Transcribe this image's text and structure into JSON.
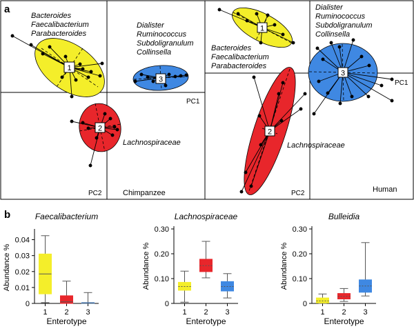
{
  "panel_a": {
    "label": "a",
    "chimp": {
      "taxa_1": [
        "Bacteroides",
        "Faecalibacterium",
        "Parabacteroides"
      ],
      "taxa_3": [
        "Dialister",
        "Ruminococcus",
        "Subdoligranulum",
        "Collinsella"
      ],
      "taxa_2": "Lachnospiraceae",
      "pc1": "PC1",
      "pc2": "PC2",
      "name": "Chimpanzee",
      "marker_1": "1",
      "marker_2": "2",
      "marker_3": "3"
    },
    "human": {
      "taxa_3": [
        "Dialister",
        "Ruminococcus",
        "Subdoligranulum",
        "Collinsella"
      ],
      "taxa_1": [
        "Bacteroides",
        "Faecalibacterium",
        "Parabacteroides"
      ],
      "taxa_2": "Lachnospiraceae",
      "pc1": "PC1",
      "pc2": "PC2",
      "name": "Human",
      "marker_1": "1",
      "marker_2": "2",
      "marker_3": "3"
    }
  },
  "panel_b": {
    "label": "b"
  },
  "colors": {
    "enterotype_1": "#f4ee2a",
    "enterotype_2": "#e8262b",
    "enterotype_3": "#3f88e2",
    "outline": "#000000"
  },
  "chart_data": [
    {
      "type": "box",
      "title": "Faecalibacterium",
      "xlabel": "Enterotype",
      "ylabel": "Abundance %",
      "categories": [
        "1",
        "2",
        "3"
      ],
      "ylim": [
        0,
        0.045
      ],
      "yticks": [
        "0",
        "0.01",
        "0.02",
        "0.03",
        "0.04"
      ],
      "ytick_values": [
        0,
        0.01,
        0.02,
        0.03,
        0.04
      ],
      "boxes": [
        {
          "min": 0.0005,
          "q1": 0.006,
          "median": 0.0185,
          "q3": 0.031,
          "max": 0.0425
        },
        {
          "min": 0.0,
          "q1": 0.0,
          "median": 0.001,
          "q3": 0.0048,
          "max": 0.014
        },
        {
          "min": 0.0,
          "q1": 0.0,
          "median": 0.0002,
          "q3": 0.0005,
          "max": 0.0068
        }
      ]
    },
    {
      "type": "box",
      "title": "Lachnospiraceae",
      "xlabel": "Enterotype",
      "ylabel": "Abundance %",
      "categories": [
        "1",
        "2",
        "3"
      ],
      "ylim": [
        0,
        0.3
      ],
      "yticks": [
        "0",
        "0.10",
        "0.20",
        "0.30"
      ],
      "ytick_values": [
        0,
        0.1,
        0.2,
        0.3
      ],
      "boxes": [
        {
          "min": 0.005,
          "q1": 0.053,
          "median": 0.068,
          "q3": 0.085,
          "max": 0.13
        },
        {
          "min": 0.103,
          "q1": 0.128,
          "median": 0.152,
          "q3": 0.178,
          "max": 0.25
        },
        {
          "min": 0.022,
          "q1": 0.05,
          "median": 0.068,
          "q3": 0.088,
          "max": 0.12
        }
      ]
    },
    {
      "type": "box",
      "title": "Bulleidia",
      "xlabel": "Enterotype",
      "ylabel": "Abundance %",
      "categories": [
        "1",
        "2",
        "3"
      ],
      "ylim": [
        0,
        0.3
      ],
      "yticks": [
        "0",
        "0.10",
        "0.20",
        "0.30"
      ],
      "ytick_values": [
        0,
        0.1,
        0.2,
        0.3
      ],
      "boxes": [
        {
          "min": 0.0,
          "q1": 0.002,
          "median": 0.01,
          "q3": 0.022,
          "max": 0.038
        },
        {
          "min": 0.008,
          "q1": 0.018,
          "median": 0.028,
          "q3": 0.04,
          "max": 0.06
        },
        {
          "min": 0.03,
          "q1": 0.045,
          "median": 0.07,
          "q3": 0.095,
          "max": 0.245
        }
      ]
    }
  ]
}
